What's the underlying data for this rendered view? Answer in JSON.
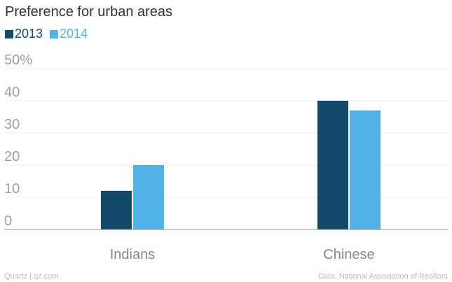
{
  "chart_data": {
    "type": "bar",
    "title": "Preference for urban areas",
    "categories": [
      "Indians",
      "Chinese"
    ],
    "series": [
      {
        "name": "2013",
        "color": "#15496b",
        "values": [
          12,
          40
        ]
      },
      {
        "name": "2014",
        "color": "#51b2e6",
        "values": [
          20,
          37
        ]
      }
    ],
    "y_ticks": [
      "0",
      "10",
      "20",
      "30",
      "40",
      "50%"
    ],
    "y_tick_values": [
      0,
      10,
      20,
      30,
      40,
      50
    ],
    "ylim": [
      0,
      50
    ],
    "grid": true,
    "legend": "top-left"
  },
  "footer": {
    "source_left": "Quartz | qz.com",
    "source_right": "Data: National Association of Realtors"
  },
  "colors": {
    "axis": "#999999",
    "grid": "#ececec",
    "tick_text": "#a0a0a0",
    "category_text": "#888888",
    "title_text": "#333333"
  }
}
